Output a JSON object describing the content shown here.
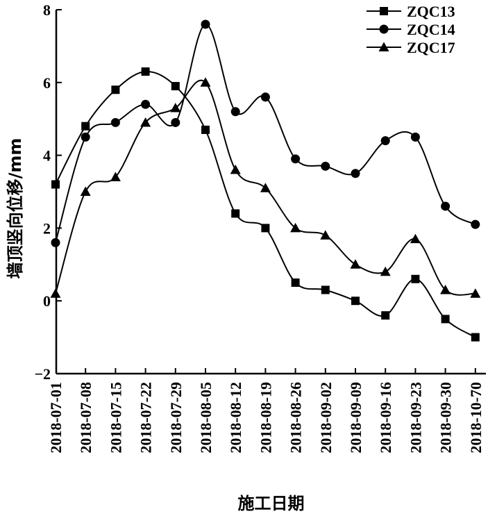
{
  "chart_data": {
    "type": "line",
    "xlabel": "施工日期",
    "ylabel": "墙顶竖向位移/mm",
    "ylim": [
      -2,
      8
    ],
    "yticks": [
      "−2",
      "0",
      "2",
      "4",
      "6",
      "8"
    ],
    "categories": [
      "2018-07-01",
      "2018-07-08",
      "2018-07-15",
      "2018-07-22",
      "2018-07-29",
      "2018-08-05",
      "2018-08-12",
      "2018-08-19",
      "2018-08-26",
      "2018-09-02",
      "2018-09-09",
      "2018-09-16",
      "2018-09-23",
      "2018-09-30",
      "2018-10-70"
    ],
    "series": [
      {
        "name": "ZQC13",
        "marker": "square",
        "values": [
          3.2,
          4.8,
          5.8,
          6.3,
          5.9,
          4.7,
          2.4,
          2.0,
          0.5,
          0.3,
          0.0,
          -0.4,
          0.6,
          -0.5,
          -1.0
        ]
      },
      {
        "name": "ZQC14",
        "marker": "circle",
        "values": [
          1.6,
          4.5,
          4.9,
          5.4,
          4.9,
          7.6,
          5.2,
          5.6,
          3.9,
          3.7,
          3.5,
          4.4,
          4.5,
          2.6,
          2.1
        ]
      },
      {
        "name": "ZQC17",
        "marker": "triangle",
        "values": [
          0.2,
          3.0,
          3.4,
          4.9,
          5.3,
          6.0,
          3.6,
          3.1,
          2.0,
          1.8,
          1.0,
          0.8,
          1.7,
          0.3,
          0.2
        ]
      }
    ],
    "legend_position": "top-right",
    "grid": false,
    "line_color": "#000000"
  }
}
